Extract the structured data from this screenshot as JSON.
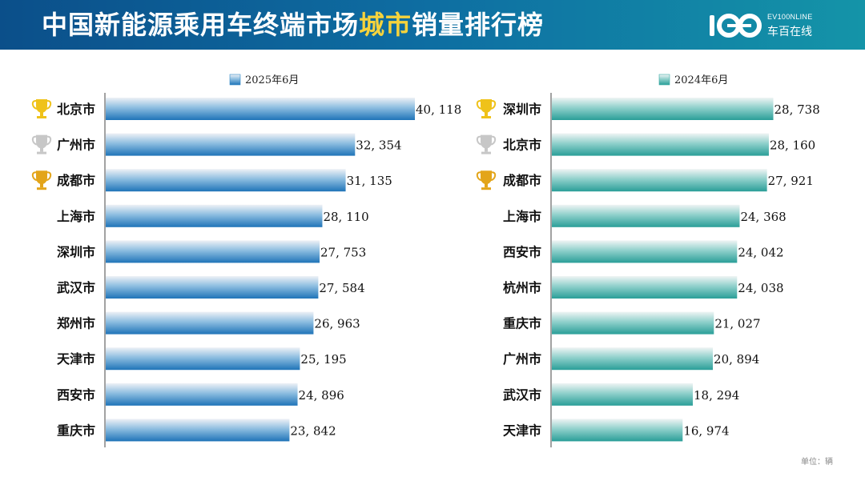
{
  "header": {
    "title_pre": "中国新能源乘用车终端市场",
    "title_highlight": "城市",
    "title_post": "销量排行榜",
    "logo_text_en": "EV100NLINE",
    "logo_text_cn": "车百在线"
  },
  "unit_label": "单位：辆",
  "colors": {
    "left_bar": "#2f88c6",
    "right_bar": "#3aaba6",
    "gold": "#efc21a",
    "silver": "#c7c7c7",
    "bronze": "#e3a51a"
  },
  "chart_data": [
    {
      "type": "bar",
      "orientation": "horizontal",
      "series": [
        {
          "name": "2025年6月",
          "values": [
            40118,
            32354,
            31135,
            28110,
            27753,
            27584,
            26963,
            25195,
            24896,
            23842
          ]
        }
      ],
      "categories": [
        "北京市",
        "广州市",
        "成都市",
        "上海市",
        "深圳市",
        "武汉市",
        "郑州市",
        "天津市",
        "西安市",
        "重庆市"
      ],
      "value_labels": [
        "40, 118",
        "32, 354",
        "31, 135",
        "28, 110",
        "27, 753",
        "27, 584",
        "26, 963",
        "25, 195",
        "24, 896",
        "23, 842"
      ],
      "trophies": [
        "gold",
        "silver",
        "bronze"
      ],
      "legend_position": "top"
    },
    {
      "type": "bar",
      "orientation": "horizontal",
      "series": [
        {
          "name": "2024年6月",
          "values": [
            28738,
            28160,
            27921,
            24368,
            24042,
            24038,
            21027,
            20894,
            18294,
            16974
          ]
        }
      ],
      "categories": [
        "深圳市",
        "北京市",
        "成都市",
        "上海市",
        "西安市",
        "杭州市",
        "重庆市",
        "广州市",
        "武汉市",
        "天津市"
      ],
      "value_labels": [
        "28, 738",
        "28, 160",
        "27, 921",
        "24, 368",
        "24, 042",
        "24, 038",
        "21, 027",
        "20, 894",
        "18, 294",
        "16, 974"
      ],
      "trophies": [
        "gold",
        "silver",
        "bronze"
      ],
      "legend_position": "top"
    }
  ]
}
